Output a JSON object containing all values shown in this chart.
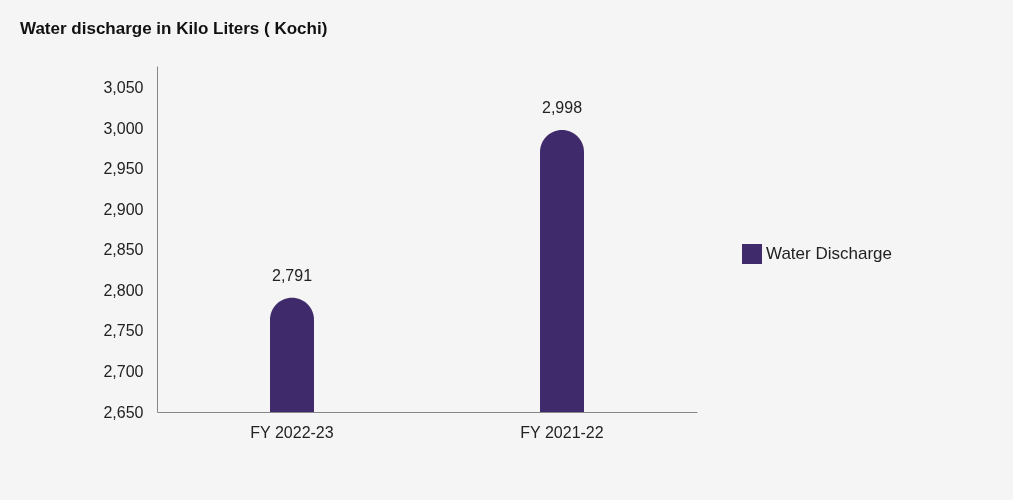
{
  "chart_data": {
    "type": "bar",
    "title": "Water discharge in Kilo Liters ( Kochi)",
    "categories": [
      "FY 2022-23",
      "FY 2021-22"
    ],
    "series": [
      {
        "name": "Water Discharge",
        "color": "#3f2a6b",
        "values": [
          2791,
          2998
        ],
        "value_labels": [
          "2,791",
          "2,998"
        ]
      }
    ],
    "ylim": [
      2650,
      3077
    ],
    "yticks": [
      {
        "value": 2650,
        "label": "2,650"
      },
      {
        "value": 2700,
        "label": "2,700"
      },
      {
        "value": 2750,
        "label": "2,750"
      },
      {
        "value": 2800,
        "label": "2,800"
      },
      {
        "value": 2850,
        "label": "2,850"
      },
      {
        "value": 2900,
        "label": "2,900"
      },
      {
        "value": 2950,
        "label": "2,950"
      },
      {
        "value": 3000,
        "label": "3,000"
      },
      {
        "value": 3050,
        "label": "3,050"
      }
    ],
    "legend": "right",
    "grid": false
  }
}
